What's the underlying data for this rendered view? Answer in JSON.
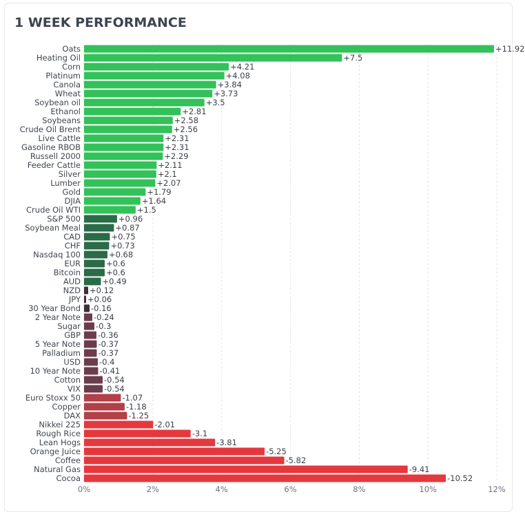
{
  "title": "1 WEEK PERFORMANCE",
  "chart_data": {
    "type": "bar",
    "orientation": "horizontal",
    "title": "1 WEEK PERFORMANCE",
    "xlabel": "",
    "ylabel": "",
    "xlim": [
      0,
      12
    ],
    "x_ticks": [
      "0%",
      "2%",
      "4%",
      "6%",
      "8%",
      "10%",
      "12%"
    ],
    "grid": "vertical dashed",
    "categories": [
      "Oats",
      "Heating Oil",
      "Corn",
      "Platinum",
      "Canola",
      "Wheat",
      "Soybean oil",
      "Ethanol",
      "Soybeans",
      "Crude Oil Brent",
      "Live Cattle",
      "Gasoline RBOB",
      "Russell 2000",
      "Feeder Cattle",
      "Silver",
      "Lumber",
      "Gold",
      "DJIA",
      "Crude Oil WTI",
      "S&P 500",
      "Soybean Meal",
      "CAD",
      "CHF",
      "Nasdaq 100",
      "EUR",
      "Bitcoin",
      "AUD",
      "NZD",
      "JPY",
      "30 Year Bond",
      "2 Year Note",
      "Sugar",
      "GBP",
      "5 Year Note",
      "Palladium",
      "USD",
      "10 Year Note",
      "Cotton",
      "VIX",
      "Euro Stoxx 50",
      "Copper",
      "DAX",
      "Nikkei 225",
      "Rough Rice",
      "Lean Hogs",
      "Orange Juice",
      "Coffee",
      "Natural Gas",
      "Cocoa"
    ],
    "values": [
      11.92,
      7.5,
      4.21,
      4.08,
      3.84,
      3.73,
      3.5,
      2.81,
      2.58,
      2.56,
      2.31,
      2.31,
      2.29,
      2.11,
      2.1,
      2.07,
      1.79,
      1.64,
      1.5,
      0.96,
      0.87,
      0.75,
      0.73,
      0.68,
      0.6,
      0.6,
      0.49,
      0.12,
      0.06,
      -0.16,
      -0.24,
      -0.3,
      -0.36,
      -0.37,
      -0.37,
      -0.4,
      -0.41,
      -0.54,
      -0.54,
      -1.07,
      -1.18,
      -1.25,
      -2.01,
      -3.1,
      -3.81,
      -5.25,
      -5.82,
      -9.41,
      -10.52
    ],
    "value_labels": [
      "+11.92",
      "+7.5",
      "+4.21",
      "+4.08",
      "+3.84",
      "+3.73",
      "+3.5",
      "+2.81",
      "+2.58",
      "+2.56",
      "+2.31",
      "+2.31",
      "+2.29",
      "+2.11",
      "+2.1",
      "+2.07",
      "+1.79",
      "+1.64",
      "+1.5",
      "+0.96",
      "+0.87",
      "+0.75",
      "+0.73",
      "+0.68",
      "+0.6",
      "+0.6",
      "+0.49",
      "+0.12",
      "+0.06",
      "-0.16",
      "-0.24",
      "-0.3",
      "-0.36",
      "-0.37",
      "-0.37",
      "-0.4",
      "-0.41",
      "-0.54",
      "-0.54",
      "-1.07",
      "-1.18",
      "-1.25",
      "-2.01",
      "-3.1",
      "-3.81",
      "-5.25",
      "-5.82",
      "-9.41",
      "-10.52"
    ],
    "bar_length": "absolute value",
    "colors": {
      "strong_gain": "#33c159",
      "gain": "#2a6b48",
      "flat": "#3e2f38",
      "loss": "#6b3d4c",
      "mid_loss": "#b33f49",
      "strong_loss": "#e5383e"
    }
  }
}
